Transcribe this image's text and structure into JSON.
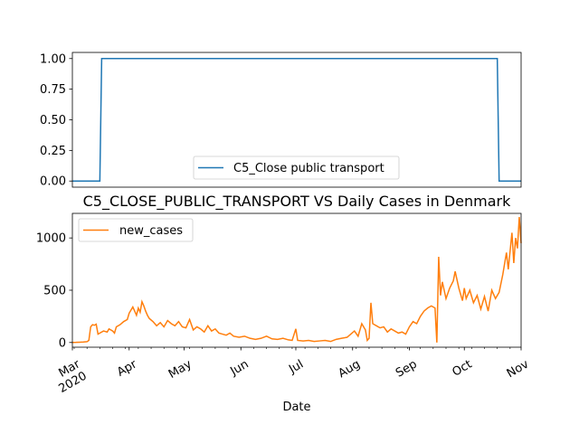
{
  "chart_data": [
    {
      "type": "line",
      "title": "",
      "xlabel": "",
      "ylabel": "",
      "ylim": [
        -0.05,
        1.05
      ],
      "yticks": [
        0.0,
        0.25,
        0.5,
        0.75,
        1.0
      ],
      "ytick_labels": [
        "0.00",
        "0.25",
        "0.50",
        "0.75",
        "1.00"
      ],
      "xlim": [
        "2020-03-01",
        "2020-11-01"
      ],
      "legend": "lower-center",
      "series": [
        {
          "name": "C5_Close public transport",
          "color": "#1f77b4",
          "points": [
            [
              "2020-03-01",
              0
            ],
            [
              "2020-03-16",
              0
            ],
            [
              "2020-03-17",
              1
            ],
            [
              "2020-10-19",
              1
            ],
            [
              "2020-10-20",
              0
            ],
            [
              "2020-11-01",
              0
            ]
          ]
        }
      ]
    },
    {
      "type": "line",
      "title": "C5_CLOSE_PUBLIC_TRANSPORT VS Daily Cases in Denmark",
      "xlabel": "Date",
      "ylabel": "",
      "ylim": [
        -45,
        1235
      ],
      "yticks": [
        0,
        500,
        1000
      ],
      "ytick_labels": [
        "0",
        "500",
        "1000"
      ],
      "xlim": [
        "2020-03-01",
        "2020-11-01"
      ],
      "xtick_labels": [
        "Mar\n2020",
        "Apr",
        "May",
        "Jun",
        "Jul",
        "Aug",
        "Sep",
        "Oct",
        "Nov"
      ],
      "legend": "top-left",
      "series": [
        {
          "name": "new_cases",
          "color": "#ff7f0e",
          "points": [
            [
              "2020-03-01",
              0
            ],
            [
              "2020-03-03",
              1
            ],
            [
              "2020-03-05",
              3
            ],
            [
              "2020-03-07",
              5
            ],
            [
              "2020-03-09",
              8
            ],
            [
              "2020-03-10",
              20
            ],
            [
              "2020-03-11",
              150
            ],
            [
              "2020-03-12",
              170
            ],
            [
              "2020-03-13",
              165
            ],
            [
              "2020-03-14",
              175
            ],
            [
              "2020-03-15",
              80
            ],
            [
              "2020-03-16",
              90
            ],
            [
              "2020-03-18",
              110
            ],
            [
              "2020-03-20",
              100
            ],
            [
              "2020-03-21",
              130
            ],
            [
              "2020-03-23",
              110
            ],
            [
              "2020-03-24",
              90
            ],
            [
              "2020-03-25",
              150
            ],
            [
              "2020-03-27",
              170
            ],
            [
              "2020-03-29",
              200
            ],
            [
              "2020-03-31",
              220
            ],
            [
              "2020-04-01",
              280
            ],
            [
              "2020-04-03",
              340
            ],
            [
              "2020-04-04",
              300
            ],
            [
              "2020-04-05",
              260
            ],
            [
              "2020-04-06",
              330
            ],
            [
              "2020-04-07",
              290
            ],
            [
              "2020-04-08",
              390
            ],
            [
              "2020-04-09",
              350
            ],
            [
              "2020-04-10",
              300
            ],
            [
              "2020-04-11",
              260
            ],
            [
              "2020-04-12",
              230
            ],
            [
              "2020-04-14",
              200
            ],
            [
              "2020-04-16",
              160
            ],
            [
              "2020-04-18",
              190
            ],
            [
              "2020-04-20",
              150
            ],
            [
              "2020-04-22",
              210
            ],
            [
              "2020-04-24",
              180
            ],
            [
              "2020-04-26",
              160
            ],
            [
              "2020-04-28",
              200
            ],
            [
              "2020-04-30",
              150
            ],
            [
              "2020-05-02",
              140
            ],
            [
              "2020-05-04",
              220
            ],
            [
              "2020-05-06",
              120
            ],
            [
              "2020-05-08",
              150
            ],
            [
              "2020-05-10",
              130
            ],
            [
              "2020-05-12",
              100
            ],
            [
              "2020-05-14",
              160
            ],
            [
              "2020-05-16",
              110
            ],
            [
              "2020-05-18",
              130
            ],
            [
              "2020-05-20",
              90
            ],
            [
              "2020-05-22",
              80
            ],
            [
              "2020-05-24",
              70
            ],
            [
              "2020-05-26",
              90
            ],
            [
              "2020-05-28",
              60
            ],
            [
              "2020-05-31",
              50
            ],
            [
              "2020-06-03",
              60
            ],
            [
              "2020-06-06",
              40
            ],
            [
              "2020-06-09",
              30
            ],
            [
              "2020-06-12",
              40
            ],
            [
              "2020-06-15",
              60
            ],
            [
              "2020-06-18",
              35
            ],
            [
              "2020-06-21",
              30
            ],
            [
              "2020-06-24",
              40
            ],
            [
              "2020-06-27",
              25
            ],
            [
              "2020-06-29",
              20
            ],
            [
              "2020-07-01",
              130
            ],
            [
              "2020-07-02",
              20
            ],
            [
              "2020-07-05",
              15
            ],
            [
              "2020-07-08",
              20
            ],
            [
              "2020-07-11",
              10
            ],
            [
              "2020-07-14",
              15
            ],
            [
              "2020-07-17",
              20
            ],
            [
              "2020-07-20",
              10
            ],
            [
              "2020-07-23",
              30
            ],
            [
              "2020-07-26",
              40
            ],
            [
              "2020-07-29",
              50
            ],
            [
              "2020-07-31",
              80
            ],
            [
              "2020-08-02",
              110
            ],
            [
              "2020-08-04",
              60
            ],
            [
              "2020-08-06",
              180
            ],
            [
              "2020-08-08",
              120
            ],
            [
              "2020-08-09",
              20
            ],
            [
              "2020-08-10",
              40
            ],
            [
              "2020-08-11",
              380
            ],
            [
              "2020-08-12",
              180
            ],
            [
              "2020-08-14",
              160
            ],
            [
              "2020-08-16",
              140
            ],
            [
              "2020-08-18",
              150
            ],
            [
              "2020-08-20",
              100
            ],
            [
              "2020-08-22",
              130
            ],
            [
              "2020-08-24",
              110
            ],
            [
              "2020-08-26",
              90
            ],
            [
              "2020-08-28",
              100
            ],
            [
              "2020-08-30",
              80
            ],
            [
              "2020-09-01",
              150
            ],
            [
              "2020-09-03",
              200
            ],
            [
              "2020-09-05",
              180
            ],
            [
              "2020-09-07",
              250
            ],
            [
              "2020-09-09",
              300
            ],
            [
              "2020-09-11",
              330
            ],
            [
              "2020-09-13",
              350
            ],
            [
              "2020-09-15",
              330
            ],
            [
              "2020-09-16",
              0
            ],
            [
              "2020-09-17",
              820
            ],
            [
              "2020-09-18",
              450
            ],
            [
              "2020-09-19",
              580
            ],
            [
              "2020-09-21",
              420
            ],
            [
              "2020-09-23",
              520
            ],
            [
              "2020-09-25",
              590
            ],
            [
              "2020-09-26",
              680
            ],
            [
              "2020-09-28",
              520
            ],
            [
              "2020-09-30",
              400
            ],
            [
              "2020-10-01",
              520
            ],
            [
              "2020-10-02",
              420
            ],
            [
              "2020-10-04",
              500
            ],
            [
              "2020-10-06",
              380
            ],
            [
              "2020-10-08",
              450
            ],
            [
              "2020-10-10",
              320
            ],
            [
              "2020-10-12",
              440
            ],
            [
              "2020-10-14",
              300
            ],
            [
              "2020-10-16",
              500
            ],
            [
              "2020-10-18",
              420
            ],
            [
              "2020-10-20",
              480
            ],
            [
              "2020-10-22",
              650
            ],
            [
              "2020-10-24",
              860
            ],
            [
              "2020-10-25",
              700
            ],
            [
              "2020-10-27",
              1050
            ],
            [
              "2020-10-28",
              760
            ],
            [
              "2020-10-29",
              1000
            ],
            [
              "2020-10-30",
              900
            ],
            [
              "2020-10-31",
              1200
            ],
            [
              "2020-11-01",
              950
            ]
          ]
        }
      ]
    }
  ]
}
